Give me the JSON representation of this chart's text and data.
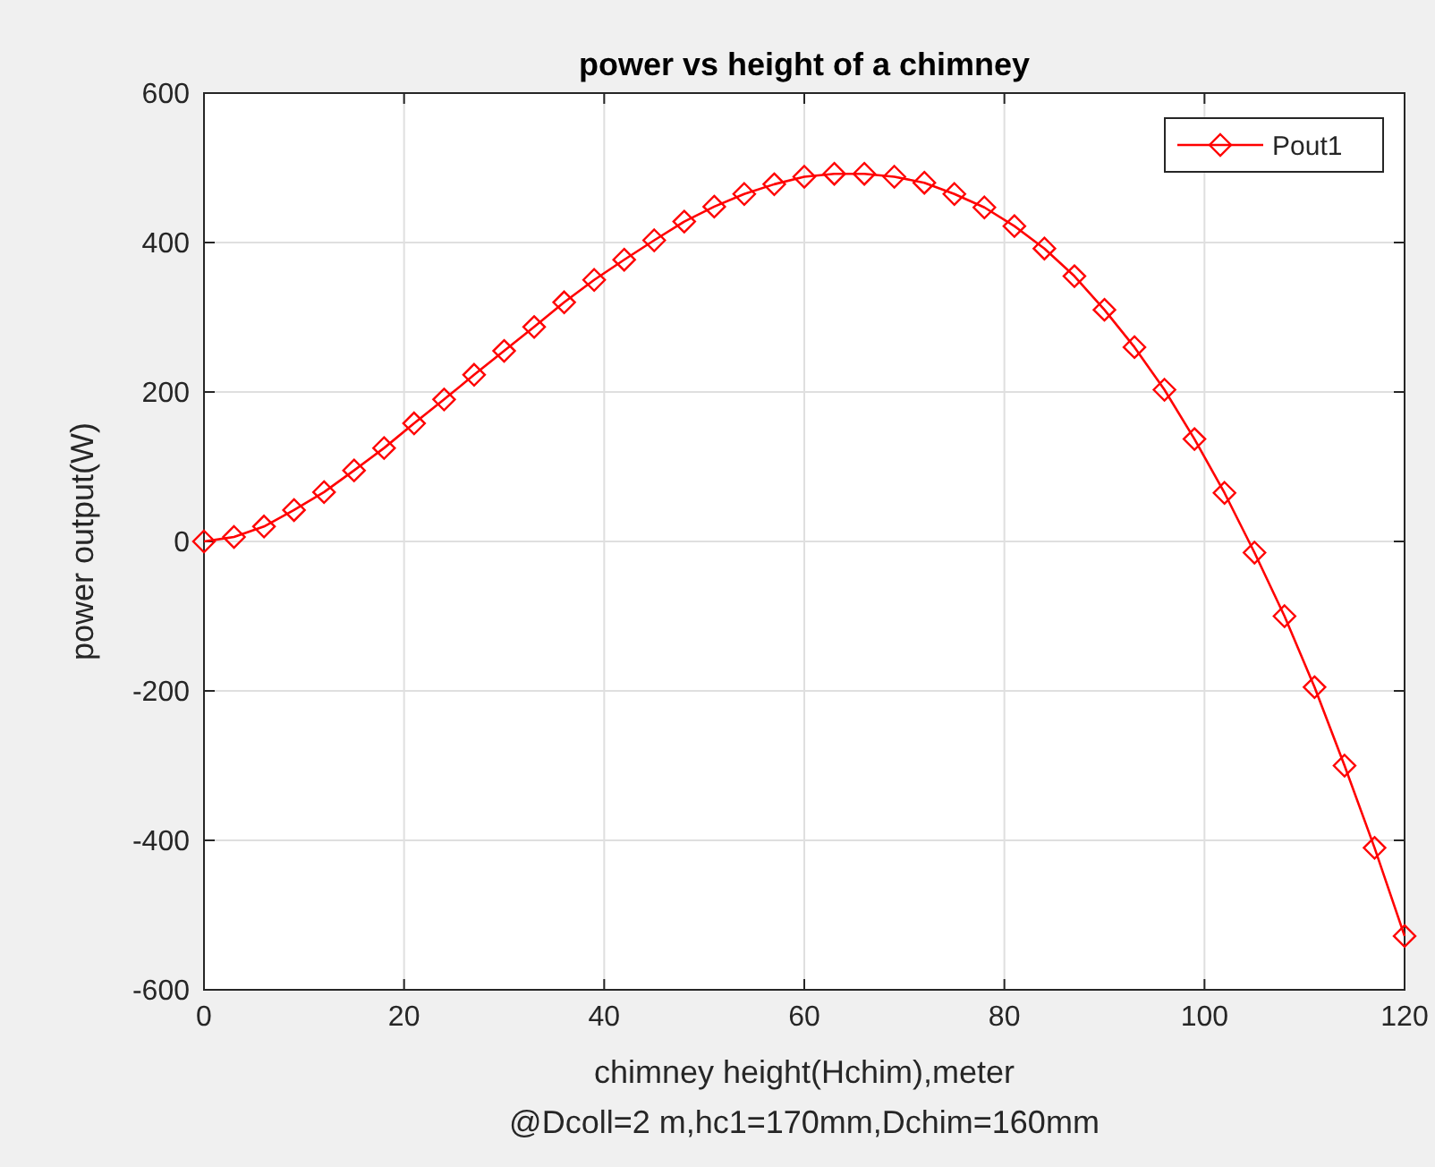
{
  "chart_data": {
    "type": "line",
    "title": "power vs height of a chimney",
    "xlabel": "chimney height(Hchim),meter",
    "subtitle": "@Dcoll=2 m,hc1=170mm,Dchim=160mm",
    "ylabel": "power output(W)",
    "x": [
      0,
      3,
      6,
      9,
      12,
      15,
      18,
      21,
      24,
      27,
      30,
      33,
      36,
      39,
      42,
      45,
      48,
      51,
      54,
      57,
      60,
      63,
      66,
      69,
      72,
      75,
      78,
      81,
      84,
      87,
      90,
      93,
      96,
      99,
      102,
      105,
      108,
      111,
      114,
      117,
      120
    ],
    "series": [
      {
        "name": "Pout1",
        "color": "#ff0000",
        "values": [
          0,
          6,
          20,
          42,
          66,
          95,
          125,
          158,
          190,
          223,
          255,
          287,
          320,
          350,
          377,
          403,
          428,
          448,
          465,
          478,
          488,
          492,
          492,
          488,
          480,
          465,
          447,
          422,
          392,
          355,
          310,
          260,
          203,
          137,
          65,
          -15,
          -100,
          -195,
          -300,
          -410,
          -528
        ]
      }
    ],
    "xlim": [
      0,
      120
    ],
    "xticks": [
      0,
      20,
      40,
      60,
      80,
      100,
      120
    ],
    "ylim": [
      -600,
      600
    ],
    "yticks": [
      -600,
      -400,
      -200,
      0,
      200,
      400,
      600
    ],
    "grid": true,
    "legend": "top right",
    "marker": "diamond",
    "line_style": "solid"
  }
}
